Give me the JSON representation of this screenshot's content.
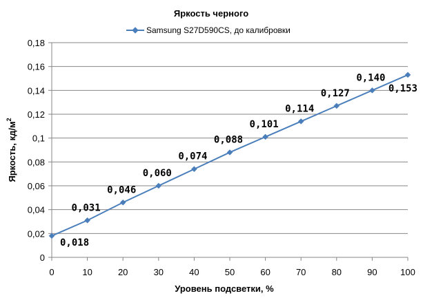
{
  "chart_data": {
    "type": "line",
    "title": "Яркость черного",
    "xlabel": "Уровень подсветки, %",
    "ylabel_main": "Яркость, кд/м",
    "ylabel_sup": "2",
    "x": [
      0,
      10,
      20,
      30,
      40,
      50,
      60,
      70,
      80,
      90,
      100
    ],
    "xlim": [
      0,
      100
    ],
    "ylim": [
      0,
      0.18
    ],
    "x_ticks": [
      "0",
      "10",
      "20",
      "30",
      "40",
      "50",
      "60",
      "70",
      "80",
      "90",
      "100"
    ],
    "y_ticks": [
      "0",
      "0,02",
      "0,04",
      "0,06",
      "0,08",
      "0,1",
      "0,12",
      "0,14",
      "0,16",
      "0,18"
    ],
    "grid": "horizontal",
    "legend_position": "top",
    "series": [
      {
        "name": "Samsung S27D590CS, до калибровки",
        "color": "#4a7ebb",
        "marker": "diamond",
        "values": [
          0.018,
          0.031,
          0.046,
          0.06,
          0.074,
          0.088,
          0.101,
          0.114,
          0.127,
          0.14,
          0.153
        ],
        "labels": [
          "0,018",
          "0,031",
          "0,046",
          "0,060",
          "0,074",
          "0,088",
          "0,101",
          "0,114",
          "0,127",
          "0,140",
          "0,153"
        ]
      }
    ]
  }
}
